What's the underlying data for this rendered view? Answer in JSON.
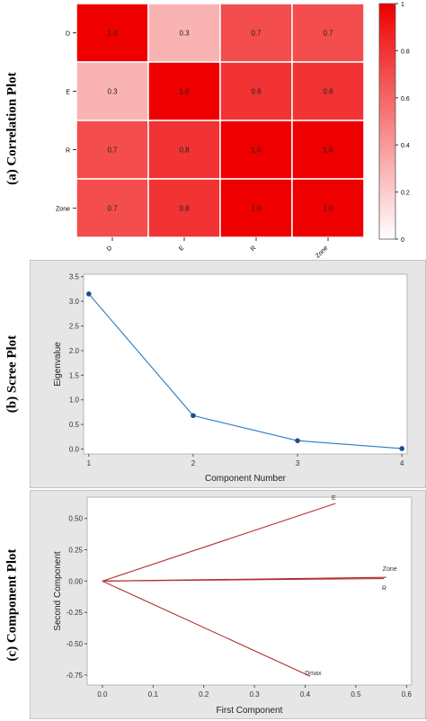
{
  "labels": {
    "a": "(a)  Correlation Plot",
    "b": "(b)  Scree Plot",
    "c": "(c)  Component Plot"
  },
  "chart_data": [
    {
      "type": "heatmap",
      "variables": [
        "D",
        "E",
        "R",
        "Zone"
      ],
      "matrix": [
        [
          1.0,
          0.3,
          0.7,
          0.7
        ],
        [
          0.3,
          1.0,
          0.8,
          0.8
        ],
        [
          0.7,
          0.8,
          1.0,
          1.0
        ],
        [
          0.7,
          0.8,
          1.0,
          1.0
        ]
      ],
      "cell_labels": [
        [
          "1.0",
          "0.3",
          "0.7",
          "0.7"
        ],
        [
          "0.3",
          "1.0",
          "0.8",
          "0.8"
        ],
        [
          "0.7",
          "0.8",
          "1.0",
          "1.0"
        ],
        [
          "0.7",
          "0.8",
          "1.0",
          "1.0"
        ]
      ],
      "colorbar": {
        "ticks": [
          "0",
          "0.2",
          "0.4",
          "0.6",
          "0.8",
          "1"
        ],
        "range": [
          0,
          1
        ],
        "low_color": "#ffffff",
        "high_color": "#ee0000"
      }
    },
    {
      "type": "line",
      "x": [
        1,
        2,
        3,
        4
      ],
      "y": [
        3.15,
        0.68,
        0.17,
        0.01
      ],
      "xticks": [
        "1",
        "2",
        "3",
        "4"
      ],
      "yticks": [
        "0.0",
        "0.5",
        "1.0",
        "1.5",
        "2.0",
        "2.5",
        "3.0",
        "3.5"
      ],
      "xlabel": "Component Number",
      "ylabel": "Eigenvalue",
      "xlim": [
        0.95,
        4.05
      ],
      "ylim": [
        -0.1,
        3.55
      ],
      "line_color": "#2b7bbf",
      "marker_color": "#1f4e8c"
    },
    {
      "type": "scatter",
      "style": "loading-vectors",
      "vectors": [
        {
          "label": "E",
          "x": 0.46,
          "y": 0.62
        },
        {
          "label": "Zone",
          "x": 0.56,
          "y": 0.03
        },
        {
          "label": "R",
          "x": 0.555,
          "y": 0.02
        },
        {
          "label": "Dmax",
          "x": 0.41,
          "y": -0.76
        }
      ],
      "xticks": [
        "0.0",
        "0.1",
        "0.2",
        "0.3",
        "0.4",
        "0.5",
        "0.6"
      ],
      "yticks": [
        "0.50",
        "0.25",
        "0.00",
        "-0.25",
        "-0.50",
        "-0.75"
      ],
      "xlabel": "First Component",
      "ylabel": "Second Component",
      "xlim": [
        -0.03,
        0.61
      ],
      "ylim": [
        -0.83,
        0.67
      ],
      "line_color": "#b03030"
    }
  ]
}
